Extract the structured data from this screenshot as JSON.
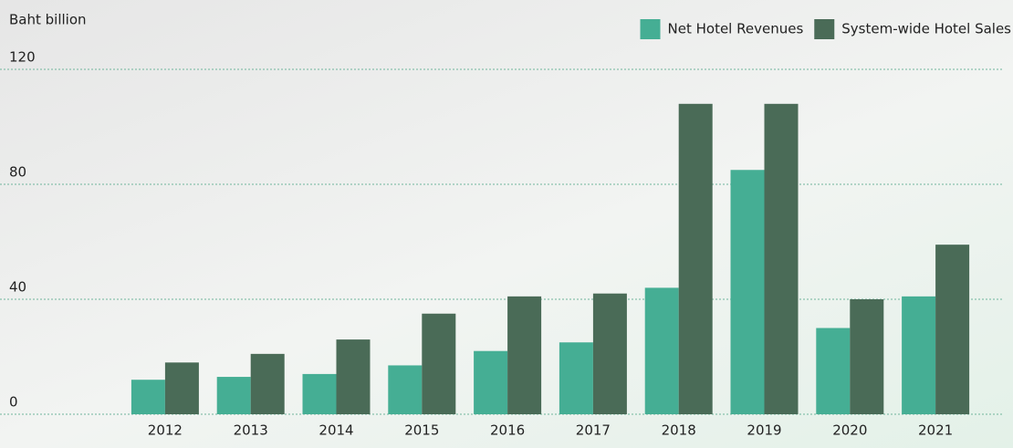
{
  "chart_data": {
    "type": "bar",
    "y_label": "Baht billion",
    "categories": [
      "2012",
      "2013",
      "2014",
      "2015",
      "2016",
      "2017",
      "2018",
      "2019",
      "2020",
      "2021"
    ],
    "series": [
      {
        "name": "Net Hotel Revenues",
        "color": "#45ae94",
        "values": [
          12,
          13,
          14,
          17,
          22,
          25,
          44,
          85,
          30,
          41
        ]
      },
      {
        "name": "System-wide Hotel Sales",
        "color": "#4a6b57",
        "values": [
          18,
          21,
          26,
          35,
          41,
          42,
          108,
          108,
          40,
          59
        ]
      }
    ],
    "ylim": [
      0,
      120
    ],
    "yticks": [
      0,
      40,
      80,
      120
    ],
    "grid": true,
    "legend": "top-right"
  }
}
